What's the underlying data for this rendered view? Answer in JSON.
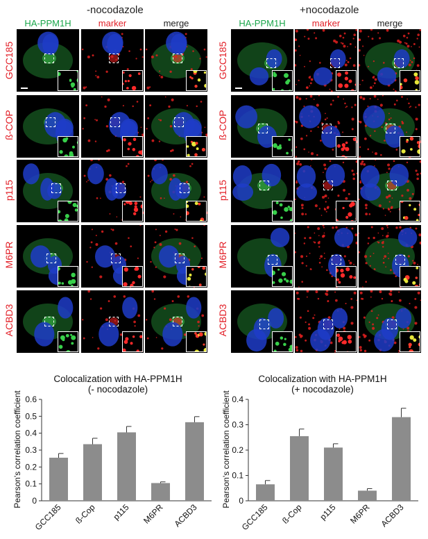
{
  "conditions": [
    {
      "id": "minus",
      "title": "-nocodazole"
    },
    {
      "id": "plus",
      "title": "+nocodazole"
    }
  ],
  "columns": [
    {
      "label": "HA-PPM1H",
      "color": "#1aa64a"
    },
    {
      "label": "marker",
      "color": "#e21e26"
    },
    {
      "label": "merge",
      "color": "#222222"
    }
  ],
  "rows": [
    "GCC185",
    "ß-COP",
    "p115",
    "M6PR",
    "ACBD3"
  ],
  "chart_data": [
    {
      "type": "bar",
      "title": "Colocalization with HA-PPM1H",
      "subtitle": "(- nocodazole)",
      "ylabel": "Pearson's correlation coefficient",
      "categories": [
        "GCC185",
        "ß-Cop",
        "p115",
        "M6PR",
        "ACBD3"
      ],
      "values": [
        0.255,
        0.335,
        0.405,
        0.105,
        0.465
      ],
      "errors": [
        0.025,
        0.035,
        0.035,
        0.007,
        0.033
      ],
      "ylim": [
        0,
        0.6
      ],
      "yticks": [
        "0",
        "0.1",
        "0.2",
        "0.3",
        "0.4",
        "0.5",
        "0.6"
      ],
      "bar_color": "#8c8c8c"
    },
    {
      "type": "bar",
      "title": "Colocalization with HA-PPM1H",
      "subtitle": "(+ nocodazole)",
      "ylabel": "Pearson's correlation coefficient",
      "categories": [
        "GCC185",
        "ß-Cop",
        "p115",
        "M6PR",
        "ACBD3"
      ],
      "values": [
        0.065,
        0.255,
        0.21,
        0.04,
        0.33
      ],
      "errors": [
        0.015,
        0.028,
        0.015,
        0.008,
        0.035
      ],
      "ylim": [
        0,
        0.4
      ],
      "yticks": [
        "0",
        "0.1",
        "0.2",
        "0.3",
        "0.4"
      ],
      "bar_color": "#8c8c8c"
    }
  ]
}
